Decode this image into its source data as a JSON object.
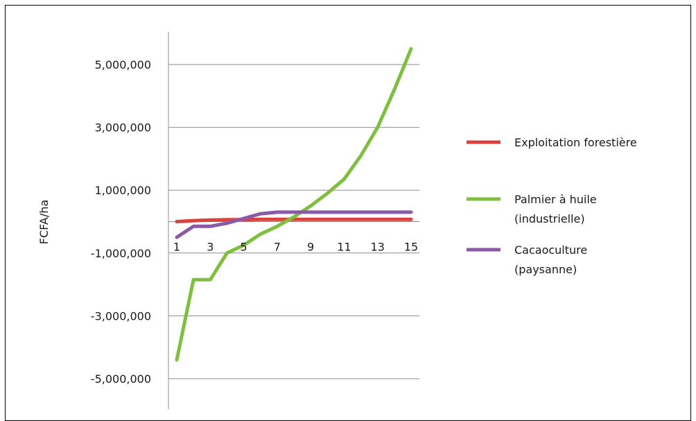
{
  "chart_data": {
    "type": "line",
    "title": "",
    "xlabel": "",
    "ylabel": "FCFA/ha",
    "x": [
      1,
      2,
      3,
      4,
      5,
      6,
      7,
      8,
      9,
      10,
      11,
      12,
      13,
      14,
      15
    ],
    "xtick_labels": [
      "1",
      "3",
      "5",
      "7",
      "9",
      "11",
      "13",
      "15"
    ],
    "ytick_labels": [
      "5,000,000",
      "3,000,000",
      "1,000,000",
      "-1,000,000",
      "-3,000,000",
      "-5,000,000"
    ],
    "yticks": [
      5000000,
      3000000,
      1000000,
      -1000000,
      -3000000,
      -5000000
    ],
    "ylim": [
      -5000000,
      6000000
    ],
    "grid": true,
    "legend_position": "right",
    "series": [
      {
        "name": "Exploitation forestière",
        "color": "#d9423f",
        "values": [
          0,
          30000,
          50000,
          60000,
          65000,
          70000,
          70000,
          70000,
          70000,
          70000,
          70000,
          70000,
          70000,
          70000,
          70000
        ]
      },
      {
        "name": "Palmier à huile (industrielle)",
        "color": "#7fbf3f",
        "values": [
          -4400000,
          -1850000,
          -1850000,
          -1000000,
          -750000,
          -400000,
          -150000,
          150000,
          500000,
          900000,
          1350000,
          2100000,
          3000000,
          4200000,
          5500000
        ]
      },
      {
        "name": "Cacaoculture (paysanne)",
        "color": "#8a5aa8",
        "values": [
          -500000,
          -150000,
          -150000,
          -50000,
          100000,
          250000,
          300000,
          300000,
          300000,
          300000,
          300000,
          300000,
          300000,
          300000,
          300000
        ]
      }
    ],
    "legend": [
      {
        "lines": [
          "Exploitation forestière"
        ]
      },
      {
        "lines": [
          "Palmier à huile",
          "(industrielle)"
        ]
      },
      {
        "lines": [
          "Cacaoculture",
          "(paysanne)"
        ]
      }
    ]
  }
}
